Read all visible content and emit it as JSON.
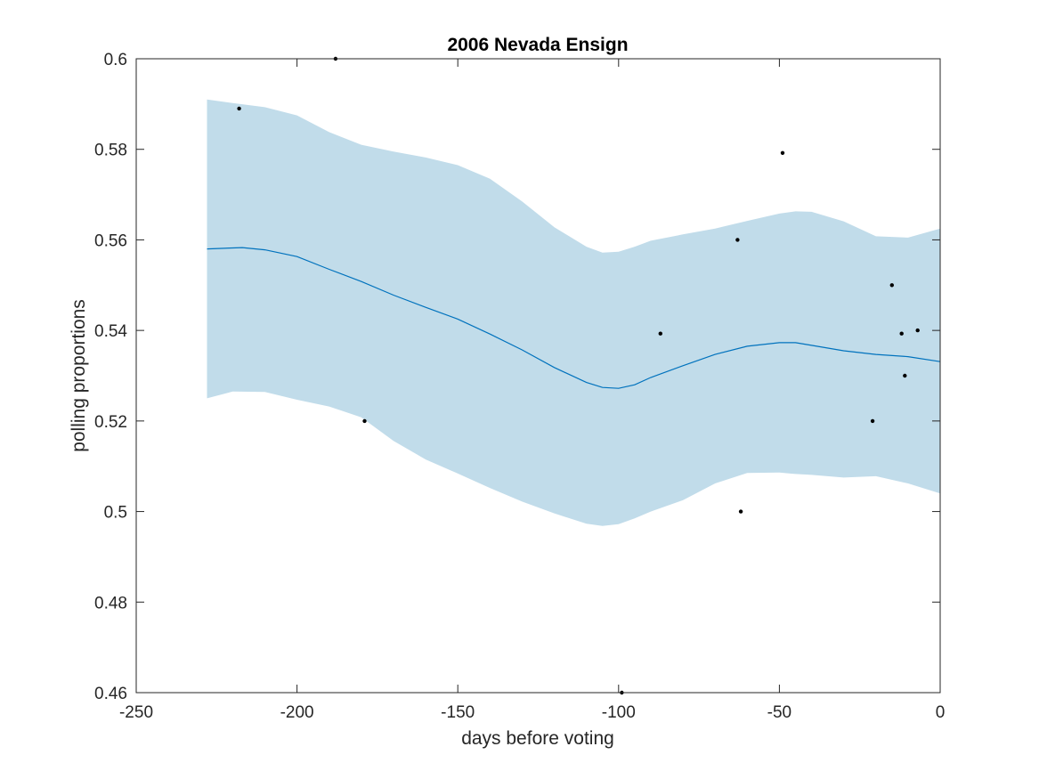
{
  "chart_data": {
    "type": "line",
    "title": "2006 Nevada Ensign",
    "xlabel": "days before voting",
    "ylabel": "polling proportions",
    "xlim": [
      -250,
      0
    ],
    "ylim": [
      0.46,
      0.6
    ],
    "xticks": [
      -250,
      -200,
      -150,
      -100,
      -50,
      0
    ],
    "xtick_labels": [
      "-250",
      "-200",
      "-150",
      "-100",
      "-50",
      "0"
    ],
    "yticks": [
      0.46,
      0.48,
      0.5,
      0.52,
      0.54,
      0.56,
      0.58,
      0.6
    ],
    "ytick_labels": [
      "0.46",
      "0.48",
      "0.5",
      "0.52",
      "0.54",
      "0.56",
      "0.58",
      "0.6"
    ],
    "grid": false,
    "colors": {
      "mean": "#0072bd",
      "band": "#c1dcea",
      "points": "#000000",
      "axes": "#262626"
    },
    "mean": {
      "x": [
        -228,
        -217,
        -210,
        -200,
        -190,
        -180,
        -170,
        -160,
        -150,
        -140,
        -130,
        -120,
        -110,
        -105,
        -100,
        -95,
        -90,
        -80,
        -70,
        -60,
        -50,
        -45,
        -40,
        -30,
        -20,
        -10,
        0
      ],
      "y": [
        0.558,
        0.5583,
        0.5578,
        0.5563,
        0.5535,
        0.5508,
        0.5478,
        0.5451,
        0.5425,
        0.5392,
        0.5357,
        0.5318,
        0.5285,
        0.5274,
        0.5272,
        0.528,
        0.5296,
        0.5322,
        0.5347,
        0.5365,
        0.5373,
        0.5373,
        0.5367,
        0.5355,
        0.5347,
        0.5342,
        0.5331
      ]
    },
    "band": {
      "x": [
        -228,
        -220,
        -210,
        -200,
        -190,
        -180,
        -170,
        -160,
        -150,
        -140,
        -130,
        -120,
        -110,
        -105,
        -100,
        -95,
        -90,
        -80,
        -70,
        -60,
        -50,
        -45,
        -40,
        -30,
        -20,
        -10,
        0
      ],
      "upper": [
        0.591,
        0.5902,
        0.5893,
        0.5875,
        0.5838,
        0.581,
        0.5795,
        0.5782,
        0.5765,
        0.5735,
        0.5685,
        0.5628,
        0.5585,
        0.5572,
        0.5574,
        0.5585,
        0.5598,
        0.5612,
        0.5625,
        0.5642,
        0.5658,
        0.5663,
        0.5662,
        0.5641,
        0.5608,
        0.5605,
        0.5625
      ],
      "lower": [
        0.525,
        0.5265,
        0.5264,
        0.5247,
        0.5232,
        0.5208,
        0.5156,
        0.5115,
        0.5084,
        0.5052,
        0.5022,
        0.4996,
        0.4973,
        0.4968,
        0.4972,
        0.4985,
        0.5,
        0.5025,
        0.5062,
        0.5085,
        0.5086,
        0.5083,
        0.5081,
        0.5075,
        0.5078,
        0.5062,
        0.504
      ]
    },
    "points": {
      "x": [
        -218,
        -188,
        -179,
        -99,
        -87,
        -63,
        -62,
        -49,
        -21,
        -15,
        -12,
        -11,
        -7
      ],
      "y": [
        0.589,
        0.6,
        0.52,
        0.46,
        0.5393,
        0.56,
        0.5,
        0.5792,
        0.52,
        0.55,
        0.5393,
        0.53,
        0.54
      ]
    }
  }
}
